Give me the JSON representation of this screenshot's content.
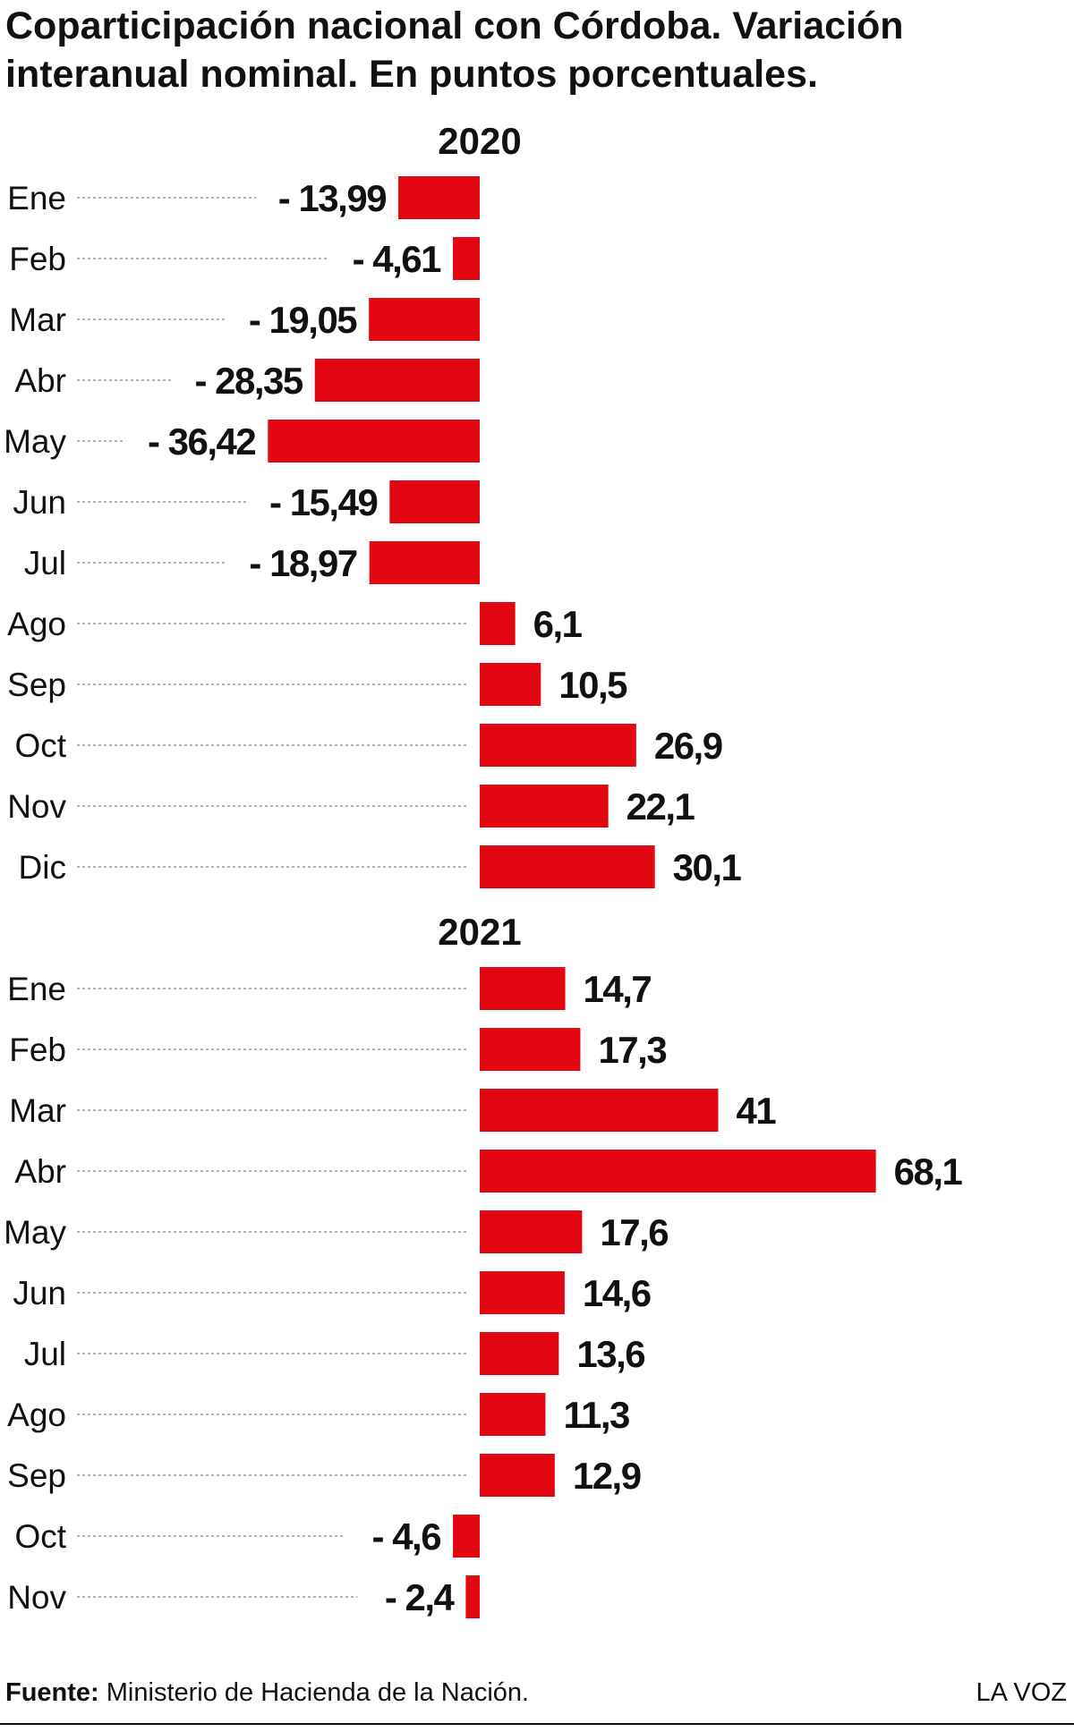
{
  "chart_data": {
    "type": "bar",
    "orientation": "horizontal",
    "title": "Coparticipación nacional con Córdoba. Variación interanual nominal. En puntos porcentuales.",
    "groups": [
      {
        "name": "2020",
        "categories": [
          "Ene",
          "Feb",
          "Mar",
          "Abr",
          "May",
          "Jun",
          "Jul",
          "Ago",
          "Sep",
          "Oct",
          "Nov",
          "Dic"
        ],
        "values": [
          -13.99,
          -4.61,
          -19.05,
          -28.35,
          -36.42,
          -15.49,
          -18.97,
          6.1,
          10.5,
          26.9,
          22.1,
          30.1
        ],
        "labels": [
          "- 13,99",
          "- 4,61",
          "- 19,05",
          "- 28,35",
          "- 36,42",
          "- 15,49",
          "- 18,97",
          "6,1",
          "10,5",
          "26,9",
          "22,1",
          "30,1"
        ]
      },
      {
        "name": "2021",
        "categories": [
          "Ene",
          "Feb",
          "Mar",
          "Abr",
          "May",
          "Jun",
          "Jul",
          "Ago",
          "Sep",
          "Oct",
          "Nov"
        ],
        "values": [
          14.7,
          17.3,
          41,
          68.1,
          17.6,
          14.6,
          13.6,
          11.3,
          12.9,
          -4.6,
          -2.4
        ],
        "labels": [
          "14,7",
          "17,3",
          "41",
          "68,1",
          "17,6",
          "14,6",
          "13,6",
          "11,3",
          "12,9",
          "- 4,6",
          "- 2,4"
        ]
      }
    ],
    "bar_color": "#e30613",
    "grid": false,
    "legend": "none"
  },
  "footer": {
    "source_label": "Fuente:",
    "source_text": " Ministerio de Hacienda de la Nación.",
    "brand": "LA VOZ"
  }
}
